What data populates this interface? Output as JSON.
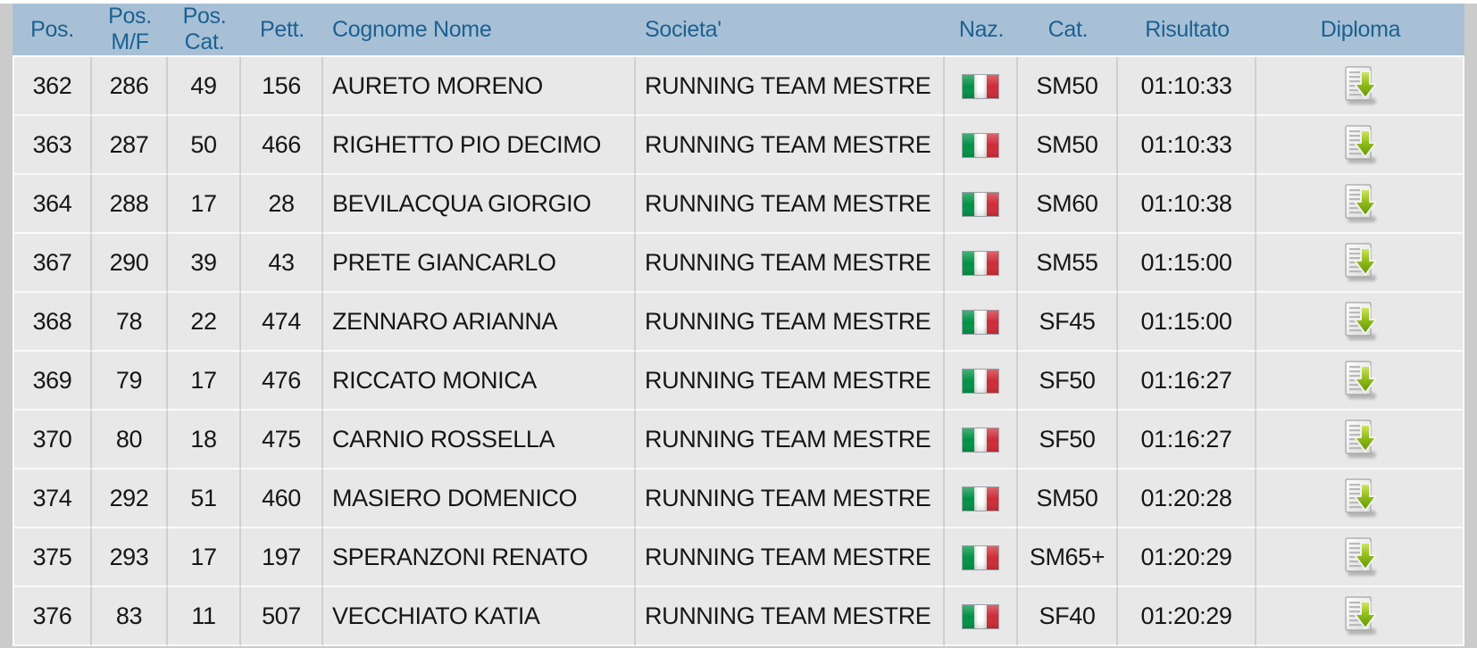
{
  "table": {
    "columns": [
      {
        "key": "pos",
        "label": "Pos."
      },
      {
        "key": "pos_mf",
        "label": "Pos. M/F"
      },
      {
        "key": "pos_cat",
        "label": "Pos. Cat."
      },
      {
        "key": "pett",
        "label": "Pett."
      },
      {
        "key": "cognome_nome",
        "label": "Cognome Nome"
      },
      {
        "key": "societa",
        "label": "Societa'"
      },
      {
        "key": "naz",
        "label": "Naz."
      },
      {
        "key": "cat",
        "label": "Cat."
      },
      {
        "key": "risultato",
        "label": "Risultato"
      },
      {
        "key": "diploma",
        "label": "Diploma"
      }
    ],
    "rows": [
      {
        "pos": "362",
        "pos_mf": "286",
        "pos_cat": "49",
        "pett": "156",
        "cognome_nome": "AURETO MORENO",
        "societa": "RUNNING TEAM MESTRE",
        "naz": "italian-flag-icon",
        "cat": "SM50",
        "risultato": "01:10:33",
        "diploma": "diploma-download-icon"
      },
      {
        "pos": "363",
        "pos_mf": "287",
        "pos_cat": "50",
        "pett": "466",
        "cognome_nome": "RIGHETTO PIO DECIMO",
        "societa": "RUNNING TEAM MESTRE",
        "naz": "italian-flag-icon",
        "cat": "SM50",
        "risultato": "01:10:33",
        "diploma": "diploma-download-icon"
      },
      {
        "pos": "364",
        "pos_mf": "288",
        "pos_cat": "17",
        "pett": "28",
        "cognome_nome": "BEVILACQUA GIORGIO",
        "societa": "RUNNING TEAM MESTRE",
        "naz": "italian-flag-icon",
        "cat": "SM60",
        "risultato": "01:10:38",
        "diploma": "diploma-download-icon"
      },
      {
        "pos": "367",
        "pos_mf": "290",
        "pos_cat": "39",
        "pett": "43",
        "cognome_nome": "PRETE GIANCARLO",
        "societa": "RUNNING TEAM MESTRE",
        "naz": "italian-flag-icon",
        "cat": "SM55",
        "risultato": "01:15:00",
        "diploma": "diploma-download-icon"
      },
      {
        "pos": "368",
        "pos_mf": "78",
        "pos_cat": "22",
        "pett": "474",
        "cognome_nome": "ZENNARO ARIANNA",
        "societa": "RUNNING TEAM MESTRE",
        "naz": "italian-flag-icon",
        "cat": "SF45",
        "risultato": "01:15:00",
        "diploma": "diploma-download-icon"
      },
      {
        "pos": "369",
        "pos_mf": "79",
        "pos_cat": "17",
        "pett": "476",
        "cognome_nome": "RICCATO MONICA",
        "societa": "RUNNING TEAM MESTRE",
        "naz": "italian-flag-icon",
        "cat": "SF50",
        "risultato": "01:16:27",
        "diploma": "diploma-download-icon"
      },
      {
        "pos": "370",
        "pos_mf": "80",
        "pos_cat": "18",
        "pett": "475",
        "cognome_nome": "CARNIO ROSSELLA",
        "societa": "RUNNING TEAM MESTRE",
        "naz": "italian-flag-icon",
        "cat": "SF50",
        "risultato": "01:16:27",
        "diploma": "diploma-download-icon"
      },
      {
        "pos": "374",
        "pos_mf": "292",
        "pos_cat": "51",
        "pett": "460",
        "cognome_nome": "MASIERO DOMENICO",
        "societa": "RUNNING TEAM MESTRE",
        "naz": "italian-flag-icon",
        "cat": "SM50",
        "risultato": "01:20:28",
        "diploma": "diploma-download-icon"
      },
      {
        "pos": "375",
        "pos_mf": "293",
        "pos_cat": "17",
        "pett": "197",
        "cognome_nome": "SPERANZONI RENATO",
        "societa": "RUNNING TEAM MESTRE",
        "naz": "italian-flag-icon",
        "cat": "SM65+",
        "risultato": "01:20:29",
        "diploma": "diploma-download-icon"
      },
      {
        "pos": "376",
        "pos_mf": "83",
        "pos_cat": "11",
        "pett": "507",
        "cognome_nome": "VECCHIATO KATIA",
        "societa": "RUNNING TEAM MESTRE",
        "naz": "italian-flag-icon",
        "cat": "SF40",
        "risultato": "01:20:29",
        "diploma": "diploma-download-icon"
      }
    ]
  },
  "colors": {
    "header_bg": "#a8c0d6",
    "header_text": "#1b6191",
    "cell_bg": "#e8e8e8",
    "cell_text": "#161616",
    "page_bg": "#cbcbcb",
    "flag_green": "#009246",
    "flag_white": "#f4f5f0",
    "flag_red": "#ce2b37",
    "diploma_arrow_green": "#8db618"
  }
}
